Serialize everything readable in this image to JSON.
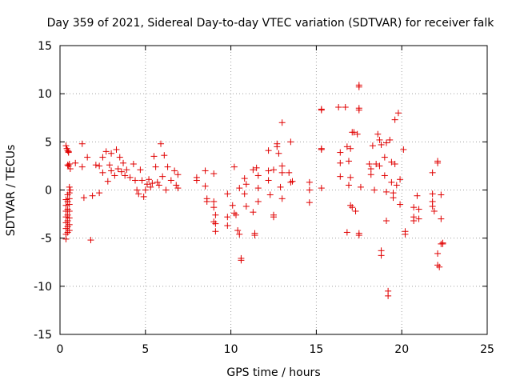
{
  "chart_data": {
    "type": "scatter",
    "title": "Day 359 of 2021, Sidereal Day-to-day VTEC variation (SDTVAR) for receiver falk",
    "xlabel": "GPS time / hours",
    "ylabel": "SDTVAR / TECUs",
    "xlim": [
      0,
      25
    ],
    "ylim": [
      -15,
      15
    ],
    "xticks": [
      0,
      5,
      10,
      15,
      20,
      25
    ],
    "yticks": [
      -15,
      -10,
      -5,
      0,
      5,
      10,
      15
    ],
    "xtick_labels": [
      "0",
      "5",
      "10",
      "15",
      "20",
      "25"
    ],
    "ytick_labels": [
      "-15",
      "-10",
      "-5",
      "0",
      "5",
      "10",
      "15"
    ],
    "grid": true,
    "marker": "+",
    "color": "#e00000",
    "series": [
      {
        "name": "SDTVAR",
        "points": [
          [
            0.35,
            4.6
          ],
          [
            0.4,
            4.3
          ],
          [
            0.45,
            4.1
          ],
          [
            0.5,
            3.9
          ],
          [
            0.5,
            4.0
          ],
          [
            0.45,
            2.6
          ],
          [
            0.5,
            2.5
          ],
          [
            0.55,
            2.7
          ],
          [
            0.6,
            2.2
          ],
          [
            0.35,
            -1.0
          ],
          [
            0.35,
            -1.6
          ],
          [
            0.35,
            -2.2
          ],
          [
            0.35,
            -2.8
          ],
          [
            0.35,
            -3.4
          ],
          [
            0.35,
            -4.0
          ],
          [
            0.35,
            -4.6
          ],
          [
            0.35,
            -5.1
          ],
          [
            0.45,
            -0.5
          ],
          [
            0.45,
            -1.2
          ],
          [
            0.45,
            -2.0
          ],
          [
            0.45,
            -2.6
          ],
          [
            0.45,
            -3.2
          ],
          [
            0.45,
            -3.8
          ],
          [
            0.45,
            -4.4
          ],
          [
            0.55,
            0.3
          ],
          [
            0.55,
            -0.3
          ],
          [
            0.55,
            -0.9
          ],
          [
            0.55,
            -1.5
          ],
          [
            0.55,
            -2.2
          ],
          [
            0.55,
            -2.9
          ],
          [
            0.55,
            -3.6
          ],
          [
            0.55,
            -4.2
          ],
          [
            0.6,
            0.0
          ],
          [
            0.9,
            2.8
          ],
          [
            1.3,
            4.8
          ],
          [
            1.3,
            2.4
          ],
          [
            1.4,
            -0.8
          ],
          [
            1.6,
            3.4
          ],
          [
            1.8,
            -5.2
          ],
          [
            1.9,
            -0.6
          ],
          [
            2.1,
            2.6
          ],
          [
            2.3,
            -0.3
          ],
          [
            2.3,
            2.5
          ],
          [
            2.5,
            3.4
          ],
          [
            2.5,
            1.8
          ],
          [
            2.7,
            4.0
          ],
          [
            2.8,
            0.9
          ],
          [
            2.9,
            2.6
          ],
          [
            3.0,
            3.8
          ],
          [
            3.0,
            2.0
          ],
          [
            3.2,
            1.5
          ],
          [
            3.3,
            4.2
          ],
          [
            3.4,
            2.2
          ],
          [
            3.5,
            3.4
          ],
          [
            3.6,
            1.9
          ],
          [
            3.7,
            2.8
          ],
          [
            3.8,
            1.5
          ],
          [
            3.9,
            2.1
          ],
          [
            4.1,
            1.3
          ],
          [
            4.3,
            2.7
          ],
          [
            4.4,
            1.0
          ],
          [
            4.5,
            0.0
          ],
          [
            4.6,
            -0.4
          ],
          [
            4.7,
            2.1
          ],
          [
            4.8,
            1.0
          ],
          [
            4.9,
            -0.7
          ],
          [
            5.0,
            0.0
          ],
          [
            5.1,
            0.6
          ],
          [
            5.2,
            1.1
          ],
          [
            5.3,
            0.3
          ],
          [
            5.4,
            0.7
          ],
          [
            5.5,
            3.5
          ],
          [
            5.6,
            2.4
          ],
          [
            5.7,
            0.8
          ],
          [
            5.8,
            0.5
          ],
          [
            5.9,
            4.8
          ],
          [
            6.0,
            1.4
          ],
          [
            6.1,
            3.6
          ],
          [
            6.2,
            0.0
          ],
          [
            6.3,
            2.4
          ],
          [
            6.5,
            1.0
          ],
          [
            6.7,
            2.0
          ],
          [
            6.8,
            0.5
          ],
          [
            6.9,
            1.6
          ],
          [
            6.9,
            0.2
          ],
          [
            8.0,
            1.3
          ],
          [
            8.0,
            1.0
          ],
          [
            8.5,
            2.0
          ],
          [
            8.5,
            0.4
          ],
          [
            8.6,
            -0.9
          ],
          [
            8.6,
            -1.2
          ],
          [
            9.0,
            1.7
          ],
          [
            9.0,
            -1.2
          ],
          [
            9.0,
            -1.8
          ],
          [
            9.0,
            -3.3
          ],
          [
            9.1,
            -3.5
          ],
          [
            9.1,
            -4.3
          ],
          [
            9.1,
            -2.6
          ],
          [
            9.8,
            -0.4
          ],
          [
            9.8,
            -2.8
          ],
          [
            9.8,
            -3.7
          ],
          [
            10.1,
            -1.6
          ],
          [
            10.2,
            2.4
          ],
          [
            10.2,
            -2.4
          ],
          [
            10.3,
            -2.6
          ],
          [
            10.4,
            -4.2
          ],
          [
            10.5,
            0.2
          ],
          [
            10.5,
            -4.6
          ],
          [
            10.6,
            -7.1
          ],
          [
            10.6,
            -7.3
          ],
          [
            10.8,
            1.2
          ],
          [
            10.8,
            -0.4
          ],
          [
            10.9,
            -1.7
          ],
          [
            10.9,
            0.6
          ],
          [
            11.3,
            2.1
          ],
          [
            11.3,
            -2.3
          ],
          [
            11.4,
            -4.5
          ],
          [
            11.4,
            -4.7
          ],
          [
            11.5,
            2.3
          ],
          [
            11.6,
            1.5
          ],
          [
            11.6,
            0.2
          ],
          [
            11.6,
            -1.2
          ],
          [
            12.2,
            4.1
          ],
          [
            12.2,
            2.0
          ],
          [
            12.2,
            1.0
          ],
          [
            12.3,
            -0.5
          ],
          [
            12.5,
            -2.6
          ],
          [
            12.5,
            -2.8
          ],
          [
            12.5,
            2.1
          ],
          [
            12.7,
            4.8
          ],
          [
            12.7,
            4.5
          ],
          [
            12.8,
            3.8
          ],
          [
            12.9,
            0.3
          ],
          [
            13.0,
            7.0
          ],
          [
            13.0,
            2.5
          ],
          [
            13.0,
            1.8
          ],
          [
            13.0,
            -0.9
          ],
          [
            13.4,
            1.8
          ],
          [
            13.5,
            5.0
          ],
          [
            13.5,
            0.8
          ],
          [
            13.6,
            0.9
          ],
          [
            14.6,
            0.8
          ],
          [
            14.6,
            0.0
          ],
          [
            14.6,
            -1.3
          ],
          [
            15.3,
            8.3
          ],
          [
            15.3,
            8.4
          ],
          [
            15.3,
            4.3
          ],
          [
            15.3,
            4.2
          ],
          [
            15.3,
            0.2
          ],
          [
            16.3,
            8.6
          ],
          [
            16.4,
            3.9
          ],
          [
            16.4,
            2.8
          ],
          [
            16.4,
            1.4
          ],
          [
            16.7,
            8.6
          ],
          [
            16.8,
            4.5
          ],
          [
            16.8,
            -4.4
          ],
          [
            16.9,
            3.0
          ],
          [
            16.9,
            0.5
          ],
          [
            17.0,
            4.3
          ],
          [
            17.0,
            1.3
          ],
          [
            17.0,
            -1.6
          ],
          [
            17.1,
            6.0
          ],
          [
            17.1,
            -1.8
          ],
          [
            17.2,
            6.0
          ],
          [
            17.3,
            -2.2
          ],
          [
            17.4,
            5.8
          ],
          [
            17.5,
            10.9
          ],
          [
            17.5,
            10.7
          ],
          [
            17.5,
            8.5
          ],
          [
            17.5,
            8.3
          ],
          [
            17.5,
            -4.5
          ],
          [
            17.5,
            -4.7
          ],
          [
            17.6,
            0.3
          ],
          [
            18.1,
            2.7
          ],
          [
            18.2,
            2.2
          ],
          [
            18.2,
            1.6
          ],
          [
            18.3,
            4.6
          ],
          [
            18.4,
            0.0
          ],
          [
            18.5,
            2.7
          ],
          [
            18.6,
            5.8
          ],
          [
            18.7,
            5.2
          ],
          [
            18.7,
            2.5
          ],
          [
            18.8,
            4.7
          ],
          [
            18.8,
            -6.3
          ],
          [
            18.8,
            -6.8
          ],
          [
            19.0,
            1.5
          ],
          [
            19.0,
            3.4
          ],
          [
            19.1,
            4.9
          ],
          [
            19.1,
            -0.2
          ],
          [
            19.1,
            -3.2
          ],
          [
            19.2,
            -10.5
          ],
          [
            19.2,
            -11.0
          ],
          [
            19.3,
            5.2
          ],
          [
            19.4,
            2.9
          ],
          [
            19.4,
            0.8
          ],
          [
            19.5,
            -0.3
          ],
          [
            19.5,
            -0.8
          ],
          [
            19.6,
            7.3
          ],
          [
            19.6,
            2.7
          ],
          [
            19.7,
            0.5
          ],
          [
            19.8,
            8.0
          ],
          [
            19.9,
            1.1
          ],
          [
            19.9,
            -1.5
          ],
          [
            20.1,
            4.2
          ],
          [
            20.2,
            -4.3
          ],
          [
            20.2,
            -4.6
          ],
          [
            20.7,
            -1.8
          ],
          [
            20.7,
            -2.8
          ],
          [
            20.7,
            -3.2
          ],
          [
            20.9,
            -0.6
          ],
          [
            21.0,
            -2.0
          ],
          [
            21.0,
            -3.0
          ],
          [
            21.8,
            1.8
          ],
          [
            21.8,
            -0.4
          ],
          [
            21.8,
            -1.2
          ],
          [
            21.8,
            -1.7
          ],
          [
            21.9,
            -2.2
          ],
          [
            22.1,
            3.0
          ],
          [
            22.1,
            2.8
          ],
          [
            22.1,
            -6.6
          ],
          [
            22.1,
            -7.8
          ],
          [
            22.2,
            -8.0
          ],
          [
            22.3,
            -0.5
          ],
          [
            22.3,
            -3.0
          ],
          [
            22.4,
            -5.5
          ],
          [
            22.4,
            -5.6
          ],
          [
            22.3,
            -5.6
          ]
        ]
      }
    ]
  }
}
